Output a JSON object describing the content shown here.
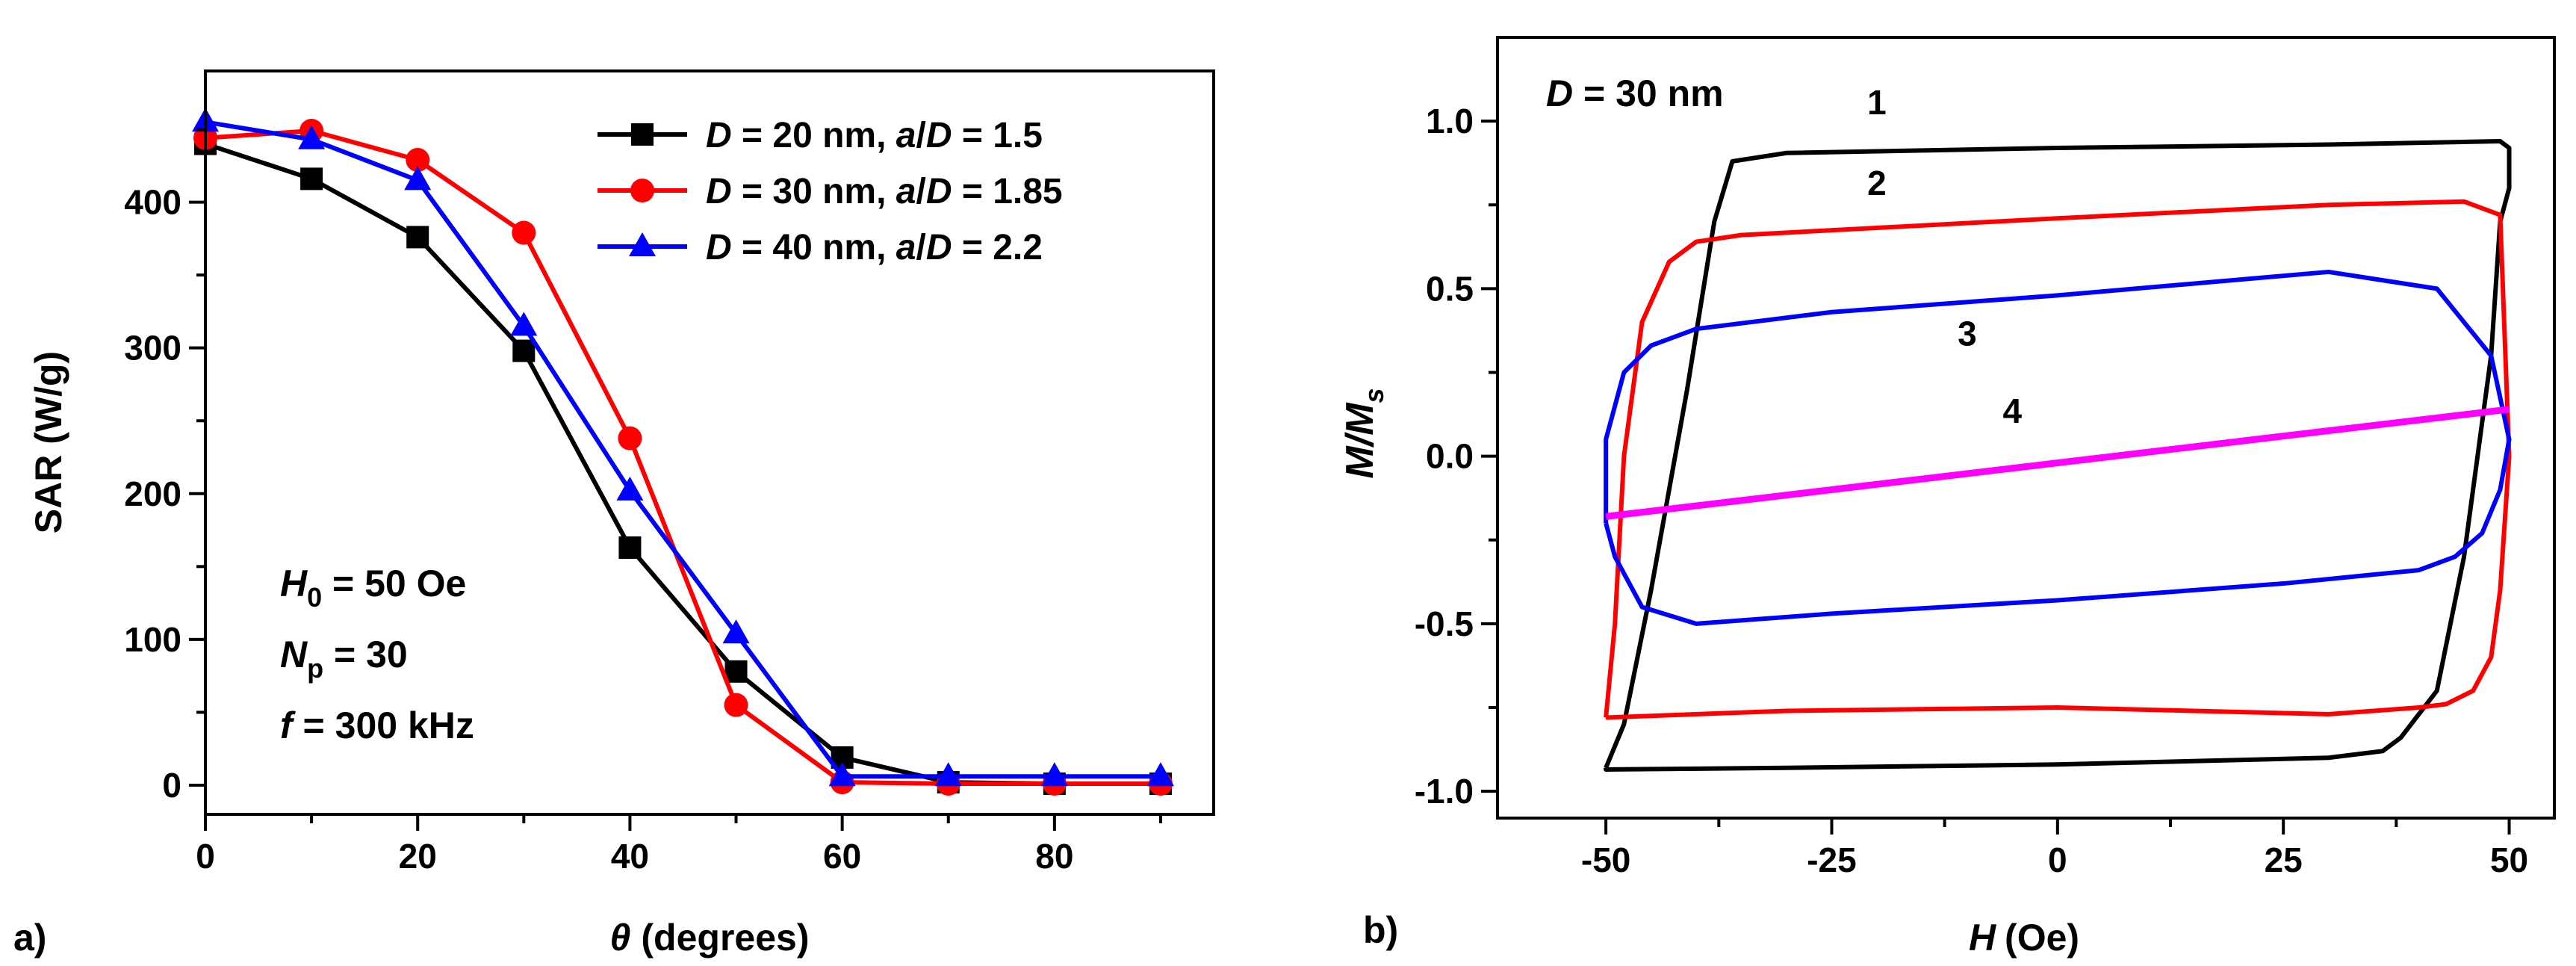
{
  "panel_labels": {
    "a": "a)",
    "b": "b)"
  },
  "chart_data": [
    {
      "type": "line",
      "panel": "a",
      "xlabel": {
        "symbol": "θ",
        "rest": "(degrees)"
      },
      "ylabel": "SAR (W/g)",
      "xlim": [
        0,
        95
      ],
      "ylim": [
        -20,
        490
      ],
      "xticks": [
        0,
        20,
        40,
        60,
        80
      ],
      "xtick_labels": [
        "0",
        "20",
        "40",
        "60",
        "80"
      ],
      "yticks": [
        0,
        100,
        200,
        300,
        400
      ],
      "ytick_labels": [
        "0",
        "100",
        "200",
        "300",
        "400"
      ],
      "x": [
        0,
        10,
        20,
        30,
        40,
        50,
        60,
        70,
        80,
        90
      ],
      "series": [
        {
          "name": "D = 20 nm, a/D = 1.5",
          "color": "#000000",
          "marker": "square",
          "legend": {
            "d_sym": "D",
            "d_text": " = 20 nm, ",
            "a_sym": "a",
            "a_text": "/",
            "d2_sym": "D",
            "tail": " = 1.5"
          },
          "values": [
            440,
            416,
            376,
            298,
            163,
            78,
            19,
            2,
            1,
            1
          ]
        },
        {
          "name": "D = 30 nm, a/D = 1.85",
          "color": "#ff0000",
          "marker": "circle",
          "legend": {
            "d_sym": "D",
            "d_text": " = 30 nm, ",
            "a_sym": "a",
            "a_text": "/",
            "d2_sym": "D",
            "tail": " = 1.85"
          },
          "values": [
            444,
            449,
            429,
            379,
            238,
            55,
            2,
            1,
            1,
            1
          ]
        },
        {
          "name": "D = 40 nm, a/D = 2.2",
          "color": "#0000ff",
          "marker": "triangle",
          "legend": {
            "d_sym": "D",
            "d_text": " = 40 nm, ",
            "a_sym": "a",
            "a_text": "/",
            "d2_sym": "D",
            "tail": " = 2.2"
          },
          "values": [
            455,
            443,
            415,
            315,
            202,
            104,
            6,
            6,
            6,
            6
          ]
        }
      ],
      "annotations": [
        {
          "sym": "H",
          "sub": "0",
          "text": " = 50 Oe"
        },
        {
          "sym": "N",
          "sub": "p",
          "text": " = 30"
        },
        {
          "sym": "f",
          "sub": "",
          "text": " = 300 kHz"
        }
      ]
    },
    {
      "type": "line",
      "panel": "b",
      "xlabel": {
        "symbol": "H",
        "rest": "(Oe)"
      },
      "ylabel": {
        "symbol": "M/M",
        "sub": "s"
      },
      "xlim": [
        -62,
        55
      ],
      "ylim": [
        -1.08,
        1.25
      ],
      "xticks": [
        -50,
        -25,
        0,
        25,
        50
      ],
      "xtick_labels": [
        "-50",
        "-25",
        "0",
        "25",
        "50"
      ],
      "yticks": [
        -1.0,
        -0.5,
        0.0,
        0.5,
        1.0
      ],
      "ytick_labels": [
        "-1.0",
        "-0.5",
        "0.0",
        "0.5",
        "1.0"
      ],
      "title_annotation": {
        "sym": "D",
        "text": " = 30 nm"
      },
      "series": [
        {
          "name": "1",
          "color": "#000000",
          "label_at": [
            -20,
            1.02
          ],
          "x": [
            -50,
            -48,
            -45,
            -41,
            -38,
            -36,
            -30,
            0,
            30,
            49,
            50,
            50,
            49,
            48,
            45,
            42,
            38,
            36,
            30,
            0,
            -30,
            -50,
            -50
          ],
          "y": [
            -0.93,
            -0.8,
            -0.4,
            0.2,
            0.7,
            0.88,
            0.905,
            0.92,
            0.93,
            0.94,
            0.92,
            0.8,
            0.7,
            0.3,
            -0.3,
            -0.7,
            -0.84,
            -0.88,
            -0.9,
            -0.92,
            -0.93,
            -0.935,
            -0.93
          ]
        },
        {
          "name": "2",
          "color": "#ff0000",
          "label_at": [
            -20,
            0.78
          ],
          "x": [
            -50,
            -49,
            -48,
            -46,
            -43,
            -40,
            -35,
            0,
            30,
            45,
            49,
            50,
            49,
            48,
            46,
            43,
            40,
            30,
            0,
            -30,
            -50,
            -50
          ],
          "y": [
            -0.78,
            -0.5,
            0.0,
            0.4,
            0.58,
            0.64,
            0.66,
            0.71,
            0.75,
            0.76,
            0.72,
            0.0,
            -0.4,
            -0.6,
            -0.7,
            -0.74,
            -0.75,
            -0.77,
            -0.75,
            -0.76,
            -0.78,
            -0.78
          ]
        },
        {
          "name": "3",
          "color": "#0000ff",
          "label_at": [
            -10,
            0.33
          ],
          "x": [
            -50,
            -50,
            -48,
            -45,
            -40,
            -25,
            0,
            30,
            42,
            48,
            50,
            49,
            47,
            44,
            40,
            25,
            0,
            -25,
            -40,
            -46,
            -49,
            -50
          ],
          "y": [
            -0.2,
            0.05,
            0.25,
            0.33,
            0.38,
            0.43,
            0.48,
            0.55,
            0.5,
            0.3,
            0.05,
            -0.1,
            -0.23,
            -0.3,
            -0.34,
            -0.38,
            -0.43,
            -0.47,
            -0.5,
            -0.45,
            -0.3,
            -0.2
          ]
        },
        {
          "name": "4",
          "color": "#ff00ff",
          "label_at": [
            -5,
            0.1
          ],
          "x": [
            -50,
            50
          ],
          "y": [
            -0.18,
            0.14
          ]
        }
      ]
    }
  ]
}
